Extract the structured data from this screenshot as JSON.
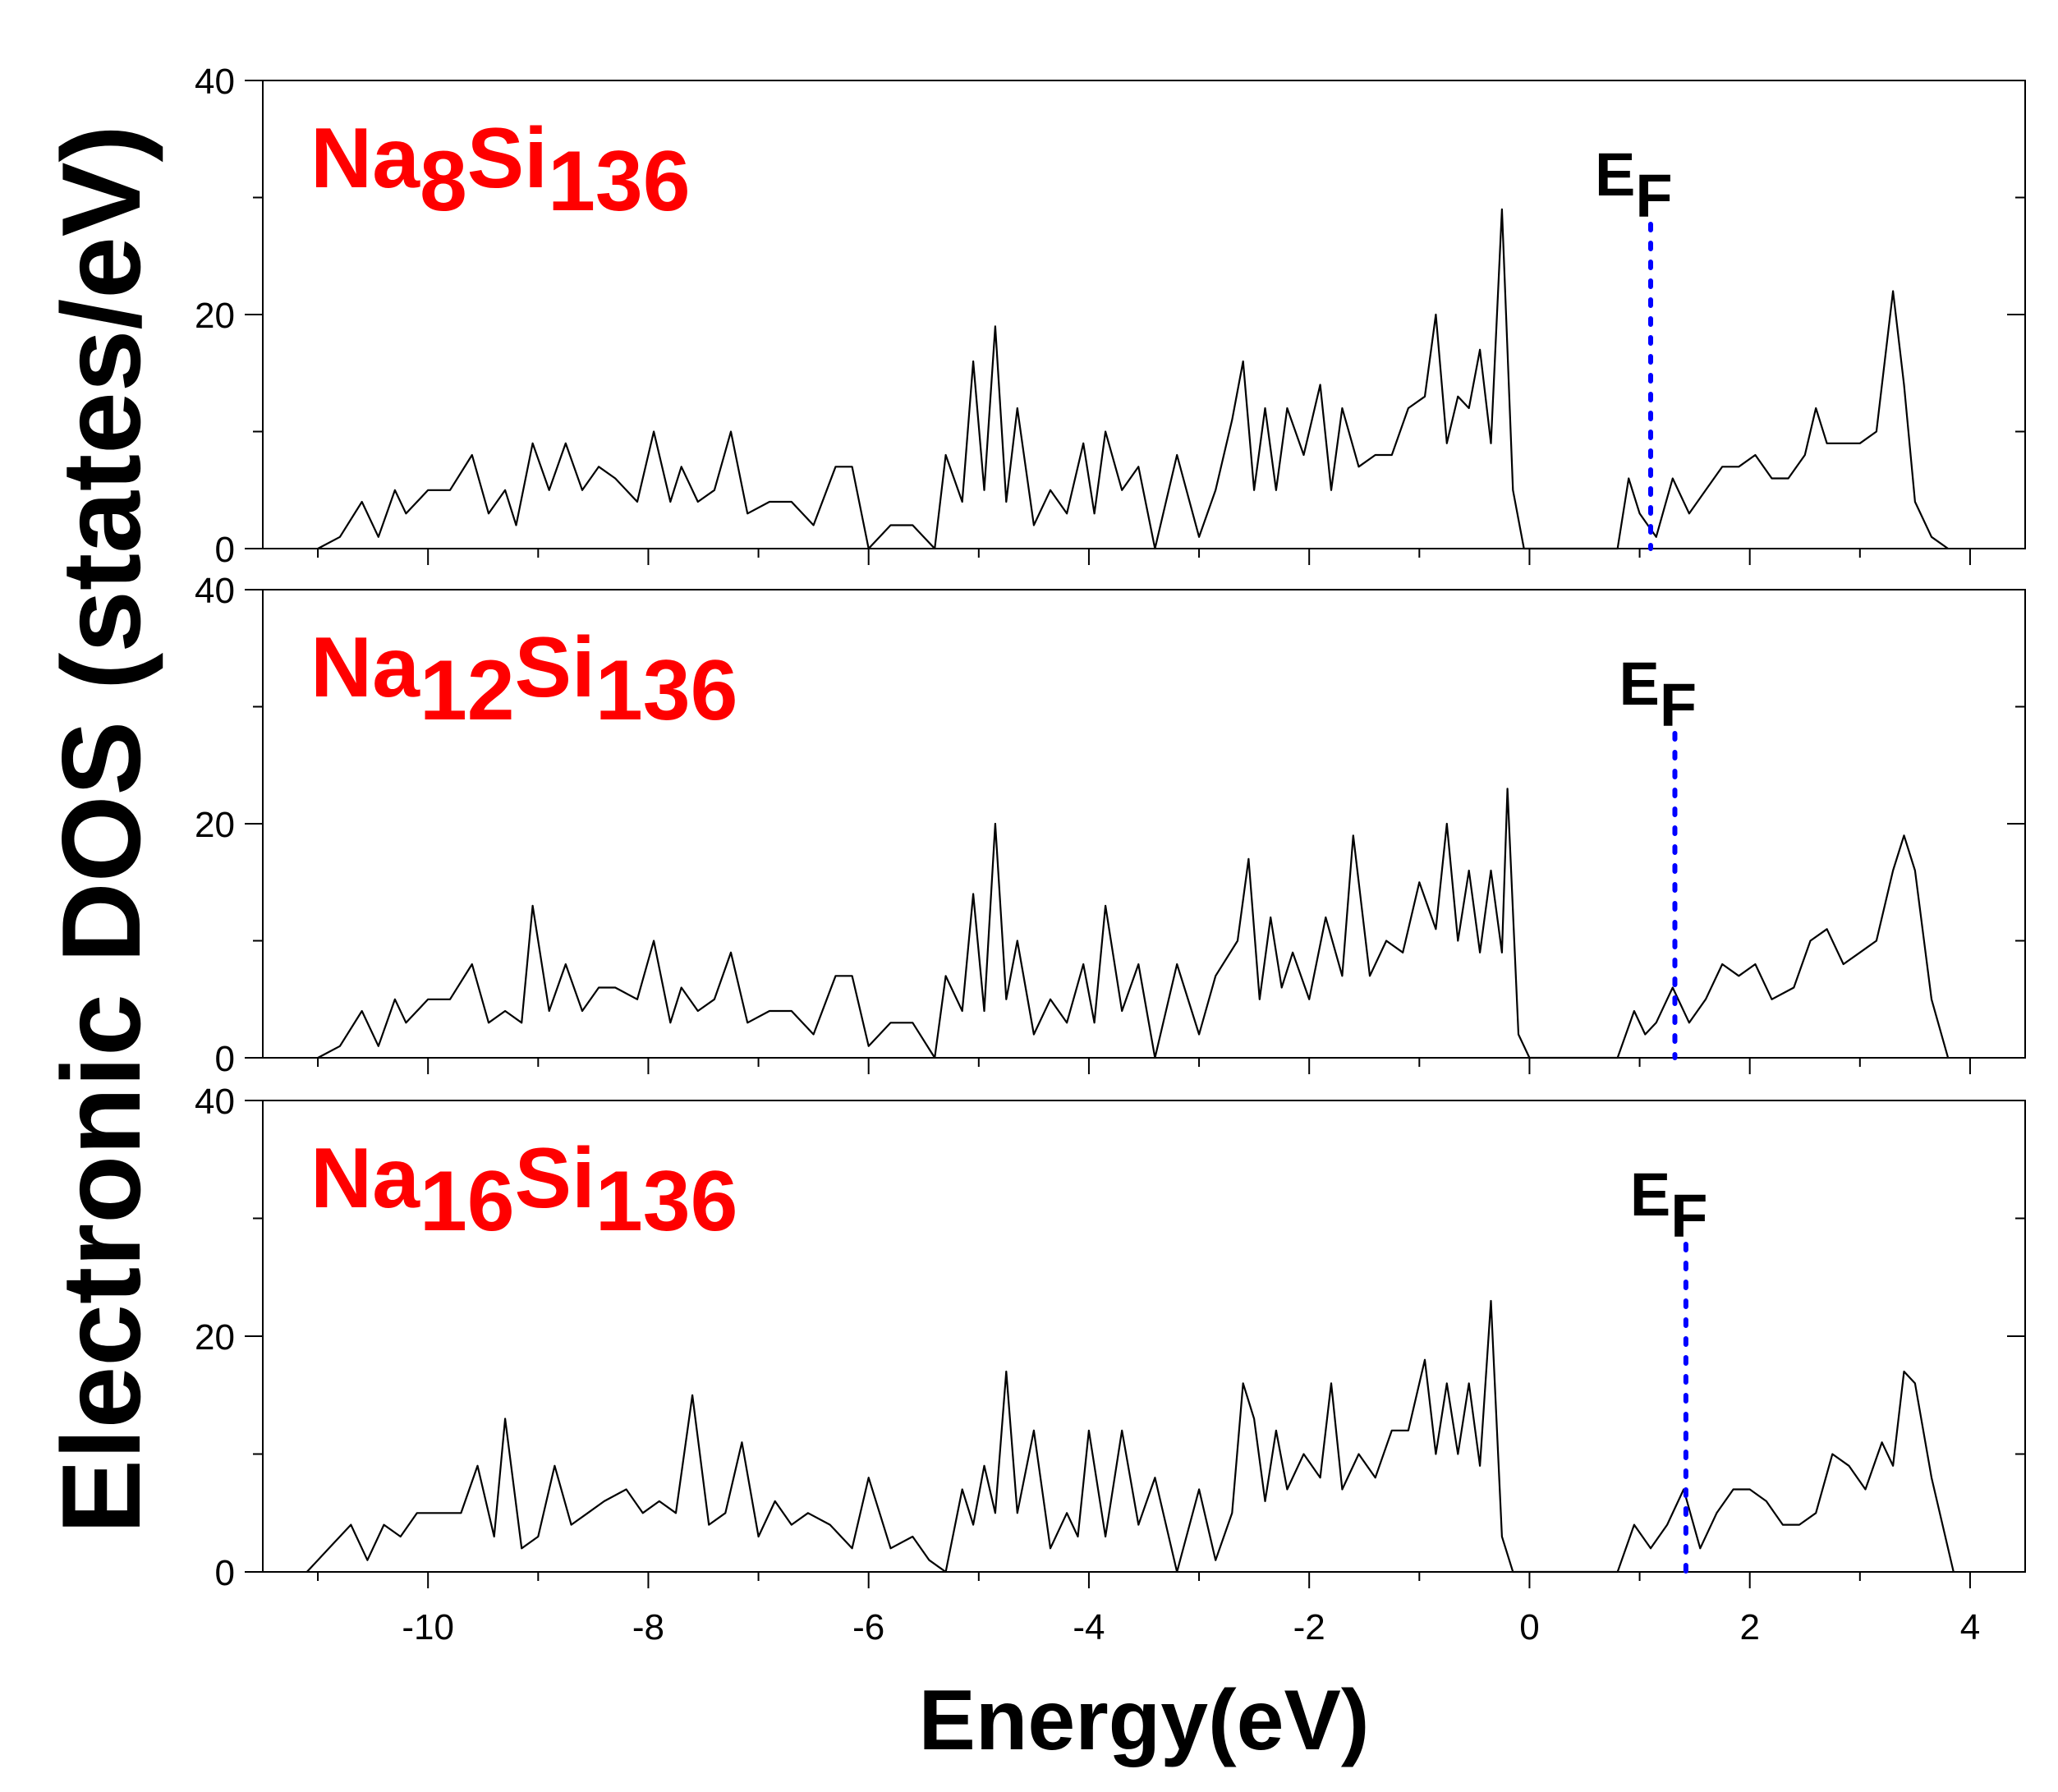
{
  "chart_data": {
    "type": "line",
    "x_label": "Energy(eV)",
    "y_label": "Electronic DOS (states/eV)",
    "xlim": [
      -11.5,
      4.5
    ],
    "x_ticks": [
      "-10",
      "-8",
      "-6",
      "-4",
      "-2",
      "0",
      "2",
      "4"
    ],
    "x_tick_values": [
      -10,
      -8,
      -6,
      -4,
      -2,
      0,
      2,
      4
    ],
    "ylim": [
      0,
      40
    ],
    "y_ticks": [
      "0",
      "20",
      "40"
    ],
    "y_tick_values": [
      0,
      20,
      40
    ],
    "line_color": "#000000",
    "fermi_color": "#0000ff",
    "label_color": "#ff0000",
    "panels": [
      {
        "formula_prefix": "Na",
        "formula_sub1": "8",
        "formula_mid": "Si",
        "formula_sub2": "136",
        "fermi_label": "E",
        "fermi_sub": "F",
        "fermi_energy": 1.1,
        "x": [
          -11.0,
          -10.8,
          -10.6,
          -10.45,
          -10.3,
          -10.2,
          -10.0,
          -9.8,
          -9.6,
          -9.45,
          -9.3,
          -9.2,
          -9.05,
          -8.9,
          -8.75,
          -8.6,
          -8.45,
          -8.3,
          -8.1,
          -7.95,
          -7.8,
          -7.7,
          -7.55,
          -7.4,
          -7.25,
          -7.1,
          -6.9,
          -6.7,
          -6.5,
          -6.3,
          -6.15,
          -6.0,
          -5.8,
          -5.6,
          -5.4,
          -5.3,
          -5.15,
          -5.05,
          -4.95,
          -4.85,
          -4.75,
          -4.65,
          -4.5,
          -4.35,
          -4.2,
          -4.05,
          -3.95,
          -3.85,
          -3.7,
          -3.55,
          -3.4,
          -3.2,
          -3.0,
          -2.85,
          -2.7,
          -2.6,
          -2.5,
          -2.4,
          -2.3,
          -2.2,
          -2.05,
          -1.9,
          -1.8,
          -1.7,
          -1.55,
          -1.4,
          -1.25,
          -1.1,
          -0.95,
          -0.85,
          -0.75,
          -0.65,
          -0.55,
          -0.45,
          -0.35,
          -0.25,
          -0.15,
          -0.05,
          0.0,
          0.8,
          0.9,
          1.0,
          1.15,
          1.3,
          1.45,
          1.6,
          1.75,
          1.9,
          2.05,
          2.2,
          2.35,
          2.5,
          2.6,
          2.7,
          2.85,
          3.0,
          3.15,
          3.3,
          3.4,
          3.5,
          3.65,
          3.8
        ],
        "y": [
          0,
          1,
          4,
          1,
          5,
          3,
          5,
          5,
          8,
          3,
          5,
          2,
          9,
          5,
          9,
          5,
          7,
          6,
          4,
          10,
          4,
          7,
          4,
          5,
          10,
          3,
          4,
          4,
          2,
          7,
          7,
          0,
          2,
          2,
          0,
          8,
          4,
          16,
          5,
          19,
          4,
          12,
          2,
          5,
          3,
          9,
          3,
          10,
          5,
          7,
          0,
          8,
          1,
          5,
          11,
          16,
          5,
          12,
          5,
          12,
          8,
          14,
          5,
          12,
          7,
          8,
          8,
          12,
          13,
          20,
          9,
          13,
          12,
          17,
          9,
          29,
          5,
          0,
          0,
          0,
          6,
          3,
          1,
          6,
          3,
          5,
          7,
          7,
          8,
          6,
          6,
          8,
          12,
          9,
          9,
          9,
          10,
          22,
          14,
          4,
          1,
          0
        ]
      },
      {
        "formula_prefix": "Na",
        "formula_sub1": "12",
        "formula_mid": "Si",
        "formula_sub2": "136",
        "fermi_label": "E",
        "fermi_sub": "F",
        "fermi_energy": 1.32,
        "x": [
          -11.0,
          -10.8,
          -10.6,
          -10.45,
          -10.3,
          -10.2,
          -10.0,
          -9.8,
          -9.6,
          -9.45,
          -9.3,
          -9.15,
          -9.05,
          -8.9,
          -8.75,
          -8.6,
          -8.45,
          -8.3,
          -8.1,
          -7.95,
          -7.8,
          -7.7,
          -7.55,
          -7.4,
          -7.25,
          -7.1,
          -6.9,
          -6.7,
          -6.5,
          -6.3,
          -6.15,
          -6.0,
          -5.8,
          -5.6,
          -5.4,
          -5.3,
          -5.15,
          -5.05,
          -4.95,
          -4.85,
          -4.75,
          -4.65,
          -4.5,
          -4.35,
          -4.2,
          -4.05,
          -3.95,
          -3.85,
          -3.7,
          -3.55,
          -3.4,
          -3.2,
          -3.0,
          -2.85,
          -2.65,
          -2.55,
          -2.45,
          -2.35,
          -2.25,
          -2.15,
          -2.0,
          -1.85,
          -1.7,
          -1.6,
          -1.45,
          -1.3,
          -1.15,
          -1.0,
          -0.85,
          -0.75,
          -0.65,
          -0.55,
          -0.45,
          -0.35,
          -0.25,
          -0.2,
          -0.1,
          0.0,
          0.8,
          0.95,
          1.05,
          1.15,
          1.3,
          1.45,
          1.6,
          1.75,
          1.9,
          2.05,
          2.2,
          2.4,
          2.55,
          2.7,
          2.85,
          3.0,
          3.15,
          3.3,
          3.4,
          3.5,
          3.65,
          3.8
        ],
        "y": [
          0,
          1,
          4,
          1,
          5,
          3,
          5,
          5,
          8,
          3,
          4,
          3,
          13,
          4,
          8,
          4,
          6,
          6,
          5,
          10,
          3,
          6,
          4,
          5,
          9,
          3,
          4,
          4,
          2,
          7,
          7,
          1,
          3,
          3,
          0,
          7,
          4,
          14,
          4,
          20,
          5,
          10,
          2,
          5,
          3,
          8,
          3,
          13,
          4,
          8,
          0,
          8,
          2,
          7,
          10,
          17,
          5,
          12,
          6,
          9,
          5,
          12,
          7,
          19,
          7,
          10,
          9,
          15,
          11,
          20,
          10,
          16,
          9,
          16,
          9,
          23,
          2,
          0,
          0,
          4,
          2,
          3,
          6,
          3,
          5,
          8,
          7,
          8,
          5,
          6,
          10,
          11,
          8,
          9,
          10,
          16,
          19,
          16,
          5,
          0
        ]
      },
      {
        "formula_prefix": "Na",
        "formula_sub1": "16",
        "formula_mid": "Si",
        "formula_sub2": "136",
        "fermi_label": "E",
        "fermi_sub": "F",
        "fermi_energy": 1.42,
        "x": [
          -11.1,
          -10.9,
          -10.7,
          -10.55,
          -10.4,
          -10.25,
          -10.1,
          -9.9,
          -9.7,
          -9.55,
          -9.4,
          -9.3,
          -9.15,
          -9.0,
          -8.85,
          -8.7,
          -8.55,
          -8.4,
          -8.2,
          -8.05,
          -7.9,
          -7.75,
          -7.6,
          -7.45,
          -7.3,
          -7.15,
          -7.0,
          -6.85,
          -6.7,
          -6.55,
          -6.35,
          -6.15,
          -6.0,
          -5.8,
          -5.6,
          -5.45,
          -5.3,
          -5.15,
          -5.05,
          -4.95,
          -4.85,
          -4.75,
          -4.65,
          -4.5,
          -4.35,
          -4.2,
          -4.1,
          -4.0,
          -3.85,
          -3.7,
          -3.55,
          -3.4,
          -3.2,
          -3.0,
          -2.85,
          -2.7,
          -2.6,
          -2.5,
          -2.4,
          -2.3,
          -2.2,
          -2.05,
          -1.9,
          -1.8,
          -1.7,
          -1.55,
          -1.4,
          -1.25,
          -1.1,
          -0.95,
          -0.85,
          -0.75,
          -0.65,
          -0.55,
          -0.45,
          -0.35,
          -0.25,
          -0.15,
          0.0,
          0.8,
          0.95,
          1.1,
          1.25,
          1.4,
          1.55,
          1.7,
          1.85,
          2.0,
          2.15,
          2.3,
          2.45,
          2.6,
          2.75,
          2.9,
          3.05,
          3.2,
          3.3,
          3.4,
          3.5,
          3.65,
          3.85
        ],
        "y": [
          0,
          2,
          4,
          1,
          4,
          3,
          5,
          5,
          5,
          9,
          3,
          13,
          2,
          3,
          9,
          4,
          5,
          6,
          7,
          5,
          6,
          5,
          15,
          4,
          5,
          11,
          3,
          6,
          4,
          5,
          4,
          2,
          8,
          2,
          3,
          1,
          0,
          7,
          4,
          9,
          5,
          17,
          5,
          12,
          2,
          5,
          3,
          12,
          3,
          12,
          4,
          8,
          0,
          7,
          1,
          5,
          16,
          13,
          6,
          12,
          7,
          10,
          8,
          16,
          7,
          10,
          8,
          12,
          12,
          18,
          10,
          16,
          10,
          16,
          9,
          23,
          3,
          0,
          0,
          0,
          4,
          2,
          4,
          7,
          2,
          5,
          7,
          7,
          6,
          4,
          4,
          5,
          10,
          9,
          7,
          11,
          9,
          17,
          16,
          8,
          0
        ]
      }
    ]
  }
}
